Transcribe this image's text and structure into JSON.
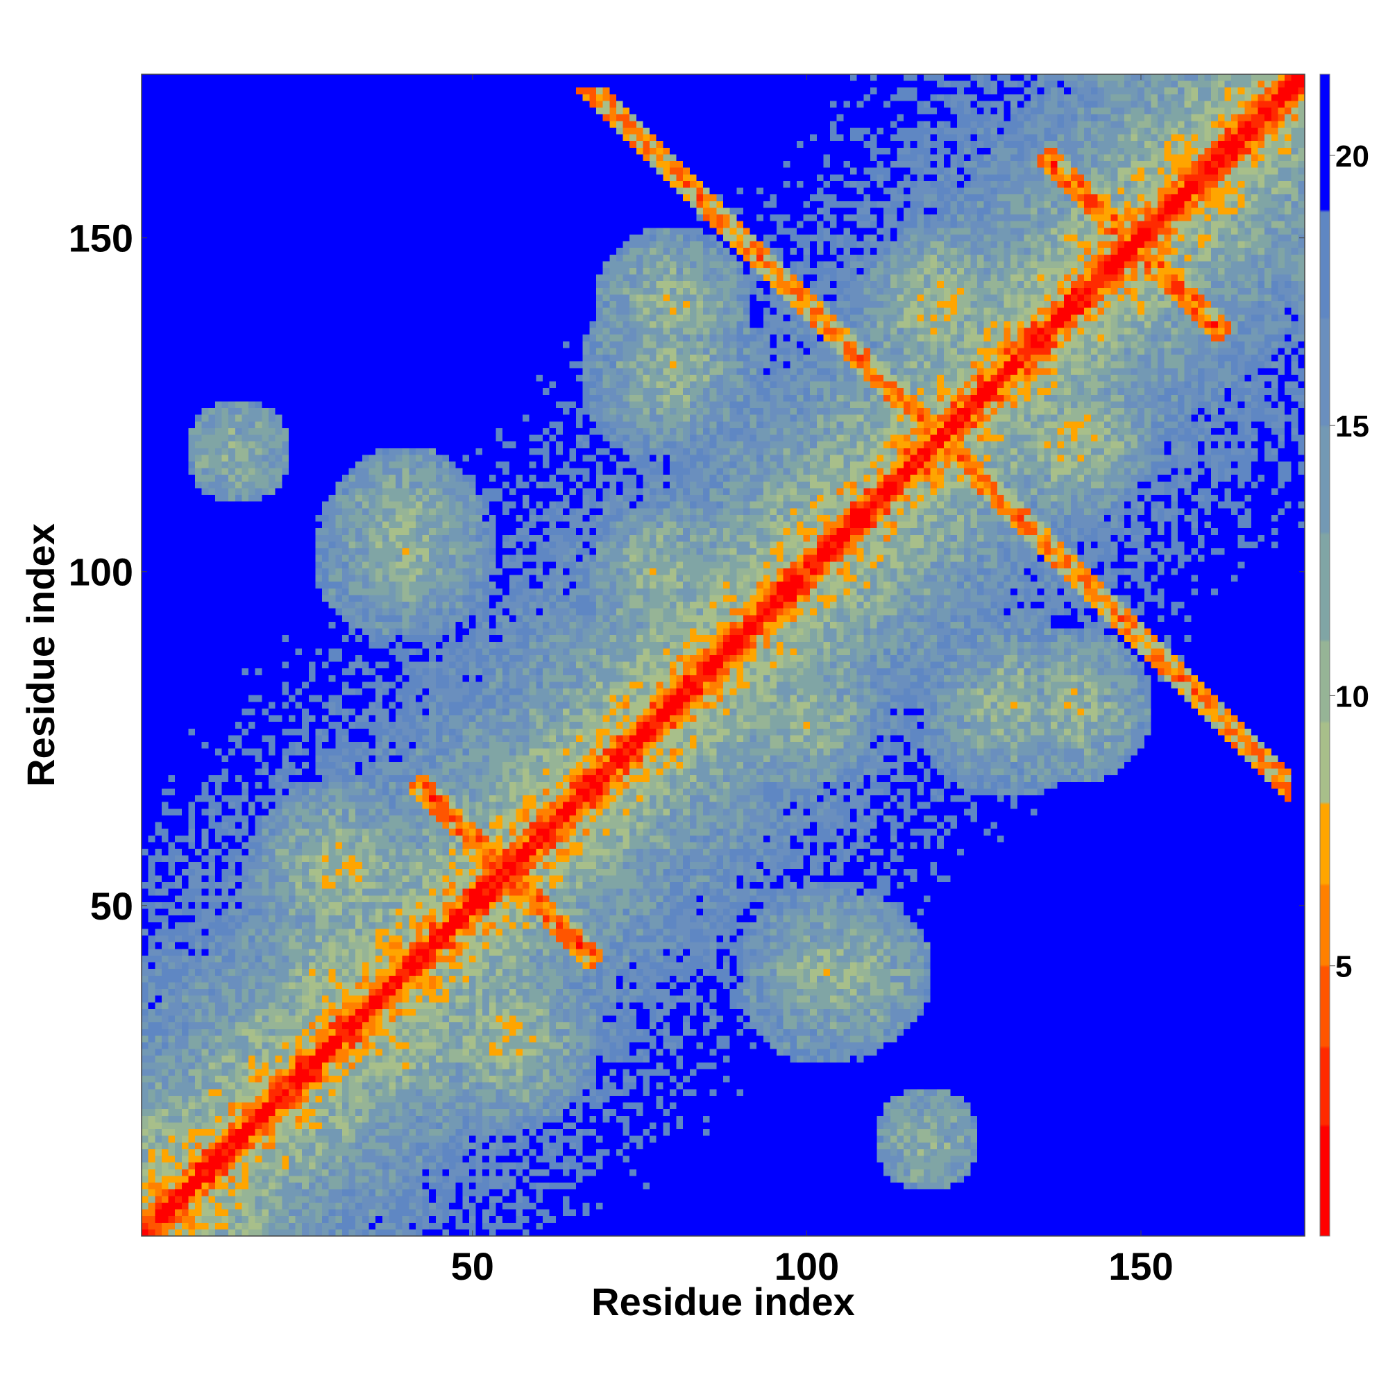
{
  "chart_data": {
    "type": "heatmap",
    "title": "",
    "xlabel": "Residue index",
    "ylabel": "Residue index",
    "n_residues": 174,
    "xlim": [
      1,
      174
    ],
    "ylim": [
      1,
      174
    ],
    "x_ticks": [
      50,
      100,
      150
    ],
    "y_ticks": [
      50,
      100,
      150
    ],
    "colorbar": {
      "ticks": [
        5,
        10,
        15,
        20
      ],
      "range": [
        0,
        21.5
      ],
      "colors": [
        {
          "upto": 2.0,
          "color": "#ff0000"
        },
        {
          "upto": 3.5,
          "color": "#ff2a00"
        },
        {
          "upto": 5.0,
          "color": "#ff5500"
        },
        {
          "upto": 6.5,
          "color": "#ff8000"
        },
        {
          "upto": 8.0,
          "color": "#ffa500"
        },
        {
          "upto": 9.5,
          "color": "#a8bf8a"
        },
        {
          "upto": 11.0,
          "color": "#96b496"
        },
        {
          "upto": 13.0,
          "color": "#80a5a5"
        },
        {
          "upto": 15.0,
          "color": "#7399b4"
        },
        {
          "upto": 17.0,
          "color": "#6a8fbe"
        },
        {
          "upto": 19.0,
          "color": "#5f87c3"
        },
        {
          "upto": 21.5,
          "color": "#0000ff"
        }
      ]
    },
    "diagonal": [
      {
        "from": 1,
        "to": 174,
        "value": 0
      }
    ],
    "contact_features": [
      {
        "type": "antidiagonal",
        "center": [
          55,
          55
        ],
        "length": 14,
        "value": 5
      },
      {
        "type": "antidiagonal",
        "center": [
          149,
          149
        ],
        "length": 14,
        "value": 5
      },
      {
        "type": "parallel",
        "start": [
          66,
          174
        ],
        "end": [
          172,
          64
        ],
        "value": 6
      },
      {
        "type": "patch",
        "center": [
          118,
          127
        ],
        "size": 8,
        "value": 14
      },
      {
        "type": "patch",
        "center": [
          100,
          78
        ],
        "size": 10,
        "value": 13
      },
      {
        "type": "patch",
        "center": [
          40,
          103
        ],
        "size": 14,
        "value": 13
      },
      {
        "type": "patch",
        "center": [
          15,
          118
        ],
        "size": 8,
        "value": 14
      },
      {
        "type": "patch",
        "center": [
          55,
          30
        ],
        "size": 14,
        "value": 12
      },
      {
        "type": "patch",
        "center": [
          140,
          120
        ],
        "size": 12,
        "value": 12
      },
      {
        "type": "patch",
        "center": [
          130,
          80
        ],
        "size": 14,
        "value": 13
      },
      {
        "type": "patch",
        "center": [
          80,
          140
        ],
        "size": 12,
        "value": 13
      },
      {
        "type": "patch",
        "center": [
          107,
          40
        ],
        "size": 12,
        "value": 13
      },
      {
        "type": "patch",
        "center": [
          30,
          40
        ],
        "size": 16,
        "value": 12
      }
    ]
  }
}
